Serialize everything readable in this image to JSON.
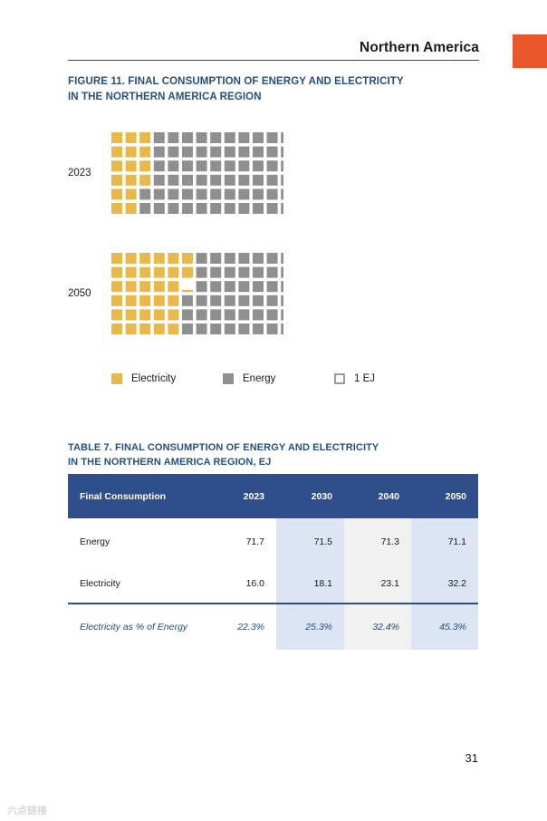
{
  "header": {
    "title": "Northern America"
  },
  "figure": {
    "title_line1": "FIGURE 11. FINAL CONSUMPTION OF ENERGY AND ELECTRICITY",
    "title_line2": "IN THE NORTHERN AMERICA REGION"
  },
  "chart_data": {
    "type": "waffle",
    "title": "FIGURE 11. FINAL CONSUMPTION OF ENERGY AND ELECTRICITY IN THE NORTHERN AMERICA REGION",
    "unit": "1 EJ",
    "series_names": [
      "Electricity",
      "Energy"
    ],
    "groups": [
      {
        "label": "2023",
        "electricity": 16.0,
        "energy": 71.7
      },
      {
        "label": "2050",
        "electricity": 32.2,
        "energy": 71.1
      }
    ],
    "legend": [
      {
        "label": "Electricity",
        "color": "#e8b84a"
      },
      {
        "label": "Energy",
        "color": "#8f8f8f"
      },
      {
        "label": "1 EJ",
        "color": "#9a9a9a"
      }
    ],
    "colors": {
      "electricity": "#e8b84a",
      "energy": "#8f8f8f"
    }
  },
  "table": {
    "title_line1": "TABLE 7. FINAL CONSUMPTION OF ENERGY AND ELECTRICITY",
    "title_line2": "IN THE NORTHERN AMERICA REGION, EJ",
    "headers": [
      "Final Consumption",
      "2023",
      "2030",
      "2040",
      "2050"
    ],
    "rows": [
      [
        "Energy",
        "71.7",
        "71.5",
        "71.3",
        "71.1"
      ],
      [
        "Electricity",
        "16.0",
        "18.1",
        "23.1",
        "32.2"
      ],
      [
        "Electricity as % of Energy",
        "22.3%",
        "25.3%",
        "32.4%",
        "45.3%"
      ]
    ]
  },
  "page_number": "31",
  "watermark": "六点链接"
}
